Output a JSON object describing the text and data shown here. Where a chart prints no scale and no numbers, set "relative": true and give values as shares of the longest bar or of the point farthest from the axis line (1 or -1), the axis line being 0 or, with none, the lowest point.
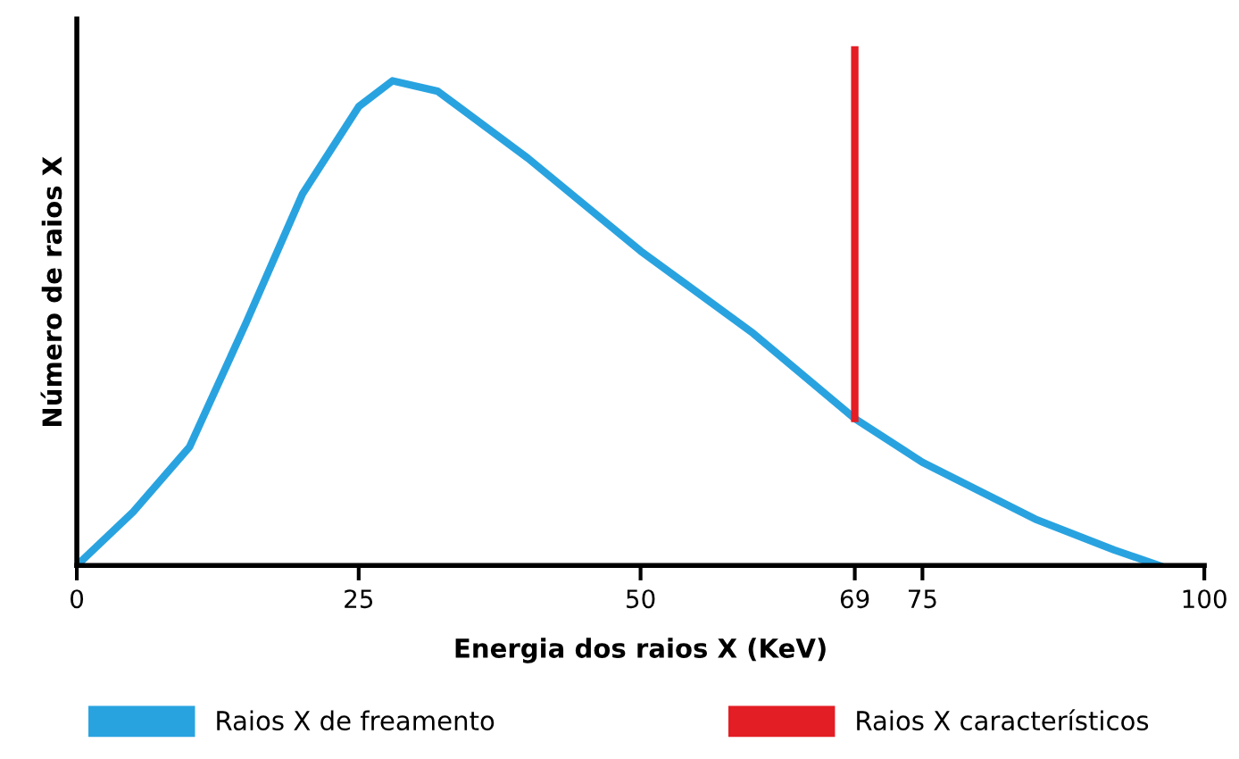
{
  "chart_data": {
    "type": "line",
    "xlabel": "Energia dos raios X (KeV)",
    "ylabel": "Número de raios X",
    "relative": true,
    "xlim": [
      0,
      100
    ],
    "xticks": [
      0,
      25,
      50,
      {
        "value": 69,
        "label": "69"
      },
      75,
      100
    ],
    "legend": "bottom",
    "marker": "none",
    "line_style": "solid",
    "series": [
      {
        "name": "Raios X de freamento",
        "color": "#29a3e0",
        "x": [
          0,
          5,
          10,
          15,
          20,
          25,
          28,
          32,
          40,
          50,
          60,
          69,
          75,
          85,
          92,
          96
        ],
        "values": [
          0,
          0.104,
          0.23,
          0.47,
          0.72,
          0.89,
          0.94,
          0.92,
          0.79,
          0.61,
          0.45,
          0.285,
          0.2,
          0.09,
          0.03,
          0
        ]
      },
      {
        "name": "Raios X característicos",
        "color": "#e31e24",
        "x": [
          69,
          69
        ],
        "values": [
          0.285,
          1
        ]
      }
    ]
  }
}
